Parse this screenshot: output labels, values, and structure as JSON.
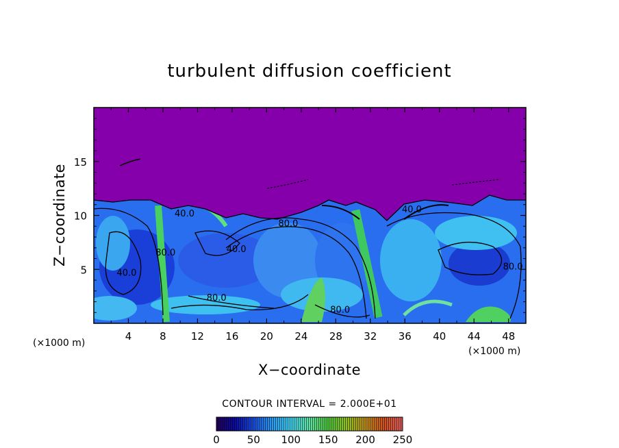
{
  "chart_data": {
    "type": "heatmap",
    "title": "turbulent diffusion coefficient",
    "xlabel": "X−coordinate",
    "ylabel": "Z−coordinate",
    "x_unit_left": "(×1000 m)",
    "x_unit_right": "(×1000 m)",
    "xlim": [
      0,
      50
    ],
    "ylim": [
      0,
      20
    ],
    "x_ticks": [
      4,
      8,
      12,
      16,
      20,
      24,
      28,
      32,
      36,
      40,
      44,
      48
    ],
    "x_tick_labels": [
      "4",
      "8",
      "12",
      "16",
      "20",
      "24",
      "28",
      "32",
      "36",
      "40",
      "44",
      "48"
    ],
    "y_ticks": [
      5,
      10,
      15
    ],
    "y_tick_labels": [
      "5",
      "10",
      "15"
    ],
    "contour_interval_label": "CONTOUR INTERVAL = 2.000E+01",
    "contour_labels": [
      {
        "text": "40.0",
        "x": 10.5,
        "z": 9.9
      },
      {
        "text": "80.0",
        "x": 22.5,
        "z": 9.0
      },
      {
        "text": "40.0",
        "x": 16.5,
        "z": 6.6
      },
      {
        "text": "40.0",
        "x": 3.8,
        "z": 4.4
      },
      {
        "text": "80.0",
        "x": 8.3,
        "z": 6.3
      },
      {
        "text": "80.0",
        "x": 14.2,
        "z": 2.1
      },
      {
        "text": "80.0",
        "x": 28.5,
        "z": 1.0
      },
      {
        "text": "40.0",
        "x": 36.8,
        "z": 10.3
      },
      {
        "text": "80.0",
        "x": 48.5,
        "z": 5.0
      }
    ],
    "colorbar": {
      "min": 0,
      "max": 250,
      "ticks": [
        0,
        50,
        100,
        150,
        200,
        250
      ],
      "tick_labels": [
        "0",
        "50",
        "100",
        "150",
        "200",
        "250"
      ],
      "colors": [
        "#23005a",
        "#0a0aa0",
        "#1a50e0",
        "#2a9af0",
        "#40d0f0",
        "#60e0a0",
        "#50c840",
        "#90c020",
        "#c09010",
        "#d05020",
        "#e06060"
      ]
    }
  }
}
